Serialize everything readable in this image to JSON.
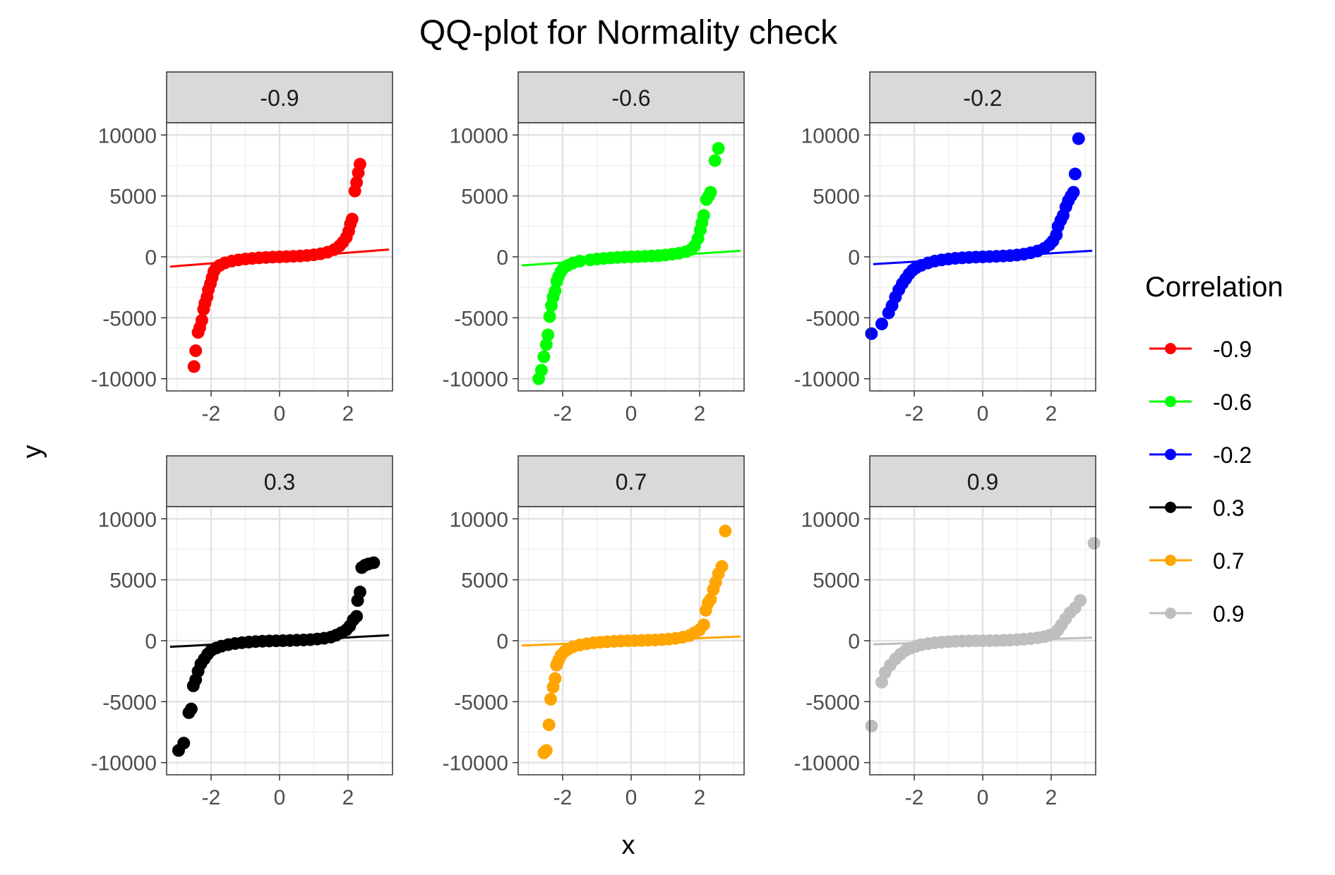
{
  "chart_data": {
    "type": "scatter",
    "title": "QQ-plot for Normality check",
    "xlabel": "x",
    "ylabel": "y",
    "xlim": [
      -3.3,
      3.3
    ],
    "ylim": [
      -11000,
      11000
    ],
    "x_ticks": [
      -2,
      0,
      2
    ],
    "y_ticks": [
      10000,
      5000,
      0,
      -5000,
      -10000
    ],
    "grid": true,
    "legend": {
      "title": "Correlation",
      "placement": "right",
      "entries": [
        "-0.9",
        "-0.6",
        "-0.2",
        "0.3",
        "0.7",
        "0.9"
      ]
    },
    "panels": [
      {
        "label": "-0.9",
        "color": "#ff0000",
        "line": [
          [
            -3.2,
            -800
          ],
          [
            3.2,
            600
          ]
        ],
        "points": [
          [
            -2.5,
            -9000
          ],
          [
            -2.45,
            -7700
          ],
          [
            -2.38,
            -6200
          ],
          [
            -2.33,
            -5800
          ],
          [
            -2.27,
            -5200
          ],
          [
            -2.22,
            -4300
          ],
          [
            -2.18,
            -3800
          ],
          [
            -2.12,
            -3300
          ],
          [
            -2.08,
            -2700
          ],
          [
            -2.02,
            -2200
          ],
          [
            -1.97,
            -1700
          ],
          [
            -1.92,
            -1200
          ],
          [
            -1.85,
            -900
          ],
          [
            -1.75,
            -700
          ],
          [
            -1.6,
            -500
          ],
          [
            -1.4,
            -350
          ],
          [
            -1.2,
            -250
          ],
          [
            -1.0,
            -180
          ],
          [
            -0.8,
            -130
          ],
          [
            -0.6,
            -80
          ],
          [
            -0.4,
            -50
          ],
          [
            -0.2,
            -20
          ],
          [
            0.0,
            0
          ],
          [
            0.2,
            20
          ],
          [
            0.4,
            40
          ],
          [
            0.6,
            70
          ],
          [
            0.8,
            110
          ],
          [
            1.0,
            170
          ],
          [
            1.2,
            250
          ],
          [
            1.4,
            380
          ],
          [
            1.6,
            600
          ],
          [
            1.75,
            900
          ],
          [
            1.85,
            1200
          ],
          [
            1.95,
            1600
          ],
          [
            2.02,
            2100
          ],
          [
            2.07,
            2700
          ],
          [
            2.12,
            3100
          ],
          [
            2.2,
            5400
          ],
          [
            2.25,
            6100
          ],
          [
            2.3,
            6900
          ],
          [
            2.35,
            7600
          ]
        ]
      },
      {
        "label": "-0.6",
        "color": "#00ff00",
        "line": [
          [
            -3.2,
            -700
          ],
          [
            3.2,
            500
          ]
        ],
        "points": [
          [
            -2.7,
            -10000
          ],
          [
            -2.62,
            -9300
          ],
          [
            -2.55,
            -8200
          ],
          [
            -2.48,
            -7200
          ],
          [
            -2.43,
            -6400
          ],
          [
            -2.38,
            -4900
          ],
          [
            -2.33,
            -4000
          ],
          [
            -2.28,
            -3300
          ],
          [
            -2.22,
            -2800
          ],
          [
            -2.17,
            -2000
          ],
          [
            -2.12,
            -1600
          ],
          [
            -2.05,
            -1200
          ],
          [
            -1.97,
            -900
          ],
          [
            -1.85,
            -700
          ],
          [
            -1.7,
            -500
          ],
          [
            -1.5,
            -350
          ],
          [
            -1.2,
            -250
          ],
          [
            -1.0,
            -180
          ],
          [
            -0.8,
            -130
          ],
          [
            -0.6,
            -90
          ],
          [
            -0.4,
            -50
          ],
          [
            -0.2,
            -20
          ],
          [
            0.0,
            0
          ],
          [
            0.2,
            20
          ],
          [
            0.4,
            40
          ],
          [
            0.6,
            70
          ],
          [
            0.8,
            100
          ],
          [
            1.0,
            150
          ],
          [
            1.2,
            220
          ],
          [
            1.4,
            300
          ],
          [
            1.6,
            420
          ],
          [
            1.75,
            600
          ],
          [
            1.85,
            900
          ],
          [
            1.95,
            1500
          ],
          [
            2.02,
            2200
          ],
          [
            2.07,
            2800
          ],
          [
            2.12,
            3400
          ],
          [
            2.2,
            4700
          ],
          [
            2.27,
            5000
          ],
          [
            2.32,
            5300
          ],
          [
            2.45,
            7900
          ],
          [
            2.55,
            8900
          ]
        ]
      },
      {
        "label": "-0.2",
        "color": "#0000ff",
        "line": [
          [
            -3.2,
            -600
          ],
          [
            3.2,
            500
          ]
        ],
        "points": [
          [
            -3.25,
            -6300
          ],
          [
            -2.95,
            -5500
          ],
          [
            -2.75,
            -4600
          ],
          [
            -2.65,
            -4000
          ],
          [
            -2.55,
            -3300
          ],
          [
            -2.45,
            -2700
          ],
          [
            -2.35,
            -2200
          ],
          [
            -2.25,
            -1800
          ],
          [
            -2.15,
            -1400
          ],
          [
            -2.05,
            -1100
          ],
          [
            -1.95,
            -900
          ],
          [
            -1.8,
            -700
          ],
          [
            -1.6,
            -500
          ],
          [
            -1.4,
            -350
          ],
          [
            -1.2,
            -250
          ],
          [
            -1.0,
            -180
          ],
          [
            -0.8,
            -120
          ],
          [
            -0.6,
            -80
          ],
          [
            -0.4,
            -50
          ],
          [
            -0.2,
            -20
          ],
          [
            0.0,
            0
          ],
          [
            0.2,
            20
          ],
          [
            0.4,
            40
          ],
          [
            0.6,
            70
          ],
          [
            0.8,
            100
          ],
          [
            1.0,
            150
          ],
          [
            1.2,
            220
          ],
          [
            1.4,
            330
          ],
          [
            1.6,
            480
          ],
          [
            1.8,
            700
          ],
          [
            1.95,
            1000
          ],
          [
            2.05,
            1300
          ],
          [
            2.15,
            1800
          ],
          [
            2.2,
            2500
          ],
          [
            2.28,
            3000
          ],
          [
            2.35,
            3400
          ],
          [
            2.43,
            4100
          ],
          [
            2.5,
            4600
          ],
          [
            2.58,
            5000
          ],
          [
            2.65,
            5300
          ],
          [
            2.7,
            6800
          ],
          [
            2.8,
            9700
          ]
        ]
      },
      {
        "label": "0.3",
        "color": "#000000",
        "line": [
          [
            -3.2,
            -500
          ],
          [
            3.2,
            450
          ]
        ],
        "points": [
          [
            -2.95,
            -9000
          ],
          [
            -2.8,
            -8400
          ],
          [
            -2.65,
            -5900
          ],
          [
            -2.58,
            -5600
          ],
          [
            -2.52,
            -3700
          ],
          [
            -2.45,
            -3200
          ],
          [
            -2.38,
            -2500
          ],
          [
            -2.3,
            -1900
          ],
          [
            -2.2,
            -1500
          ],
          [
            -2.1,
            -1100
          ],
          [
            -2.0,
            -800
          ],
          [
            -1.85,
            -600
          ],
          [
            -1.7,
            -450
          ],
          [
            -1.5,
            -320
          ],
          [
            -1.3,
            -230
          ],
          [
            -1.1,
            -160
          ],
          [
            -0.9,
            -110
          ],
          [
            -0.7,
            -70
          ],
          [
            -0.5,
            -40
          ],
          [
            -0.3,
            -20
          ],
          [
            -0.1,
            -5
          ],
          [
            0.1,
            5
          ],
          [
            0.3,
            20
          ],
          [
            0.5,
            40
          ],
          [
            0.7,
            60
          ],
          [
            0.9,
            90
          ],
          [
            1.1,
            140
          ],
          [
            1.3,
            200
          ],
          [
            1.5,
            300
          ],
          [
            1.65,
            450
          ],
          [
            1.8,
            650
          ],
          [
            1.95,
            900
          ],
          [
            2.05,
            1200
          ],
          [
            2.15,
            1700
          ],
          [
            2.25,
            2000
          ],
          [
            2.28,
            3300
          ],
          [
            2.35,
            4000
          ],
          [
            2.4,
            6000
          ],
          [
            2.5,
            6200
          ],
          [
            2.6,
            6300
          ],
          [
            2.75,
            6400
          ]
        ]
      },
      {
        "label": "0.7",
        "color": "#ffa500",
        "line": [
          [
            -3.2,
            -400
          ],
          [
            3.2,
            350
          ]
        ],
        "points": [
          [
            -2.55,
            -9200
          ],
          [
            -2.48,
            -9000
          ],
          [
            -2.4,
            -6900
          ],
          [
            -2.35,
            -4800
          ],
          [
            -2.28,
            -3800
          ],
          [
            -2.22,
            -3100
          ],
          [
            -2.18,
            -2000
          ],
          [
            -2.12,
            -1600
          ],
          [
            -2.05,
            -1200
          ],
          [
            -1.95,
            -900
          ],
          [
            -1.85,
            -700
          ],
          [
            -1.7,
            -500
          ],
          [
            -1.5,
            -350
          ],
          [
            -1.3,
            -250
          ],
          [
            -1.1,
            -170
          ],
          [
            -0.9,
            -120
          ],
          [
            -0.7,
            -80
          ],
          [
            -0.5,
            -50
          ],
          [
            -0.3,
            -25
          ],
          [
            -0.1,
            -5
          ],
          [
            0.1,
            5
          ],
          [
            0.3,
            20
          ],
          [
            0.5,
            40
          ],
          [
            0.7,
            60
          ],
          [
            0.9,
            90
          ],
          [
            1.1,
            130
          ],
          [
            1.3,
            190
          ],
          [
            1.5,
            280
          ],
          [
            1.7,
            420
          ],
          [
            1.85,
            650
          ],
          [
            2.0,
            900
          ],
          [
            2.12,
            1300
          ],
          [
            2.18,
            2500
          ],
          [
            2.25,
            3100
          ],
          [
            2.32,
            3400
          ],
          [
            2.4,
            4200
          ],
          [
            2.47,
            4800
          ],
          [
            2.55,
            5500
          ],
          [
            2.65,
            6100
          ],
          [
            2.75,
            9000
          ]
        ]
      },
      {
        "label": "0.9",
        "color": "#bebebe",
        "line": [
          [
            -3.2,
            -300
          ],
          [
            3.2,
            250
          ]
        ],
        "points": [
          [
            -3.25,
            -7000
          ],
          [
            -2.95,
            -3400
          ],
          [
            -2.85,
            -2600
          ],
          [
            -2.7,
            -2000
          ],
          [
            -2.55,
            -1500
          ],
          [
            -2.4,
            -1100
          ],
          [
            -2.25,
            -800
          ],
          [
            -2.1,
            -600
          ],
          [
            -1.95,
            -450
          ],
          [
            -1.8,
            -330
          ],
          [
            -1.6,
            -240
          ],
          [
            -1.4,
            -170
          ],
          [
            -1.2,
            -120
          ],
          [
            -1.0,
            -80
          ],
          [
            -0.8,
            -50
          ],
          [
            -0.6,
            -30
          ],
          [
            -0.4,
            -15
          ],
          [
            -0.2,
            -5
          ],
          [
            0.0,
            0
          ],
          [
            0.2,
            5
          ],
          [
            0.4,
            15
          ],
          [
            0.6,
            30
          ],
          [
            0.8,
            50
          ],
          [
            1.0,
            80
          ],
          [
            1.2,
            120
          ],
          [
            1.4,
            170
          ],
          [
            1.6,
            240
          ],
          [
            1.8,
            330
          ],
          [
            1.95,
            450
          ],
          [
            2.1,
            600
          ],
          [
            2.2,
            900
          ],
          [
            2.3,
            1300
          ],
          [
            2.42,
            1800
          ],
          [
            2.55,
            2300
          ],
          [
            2.7,
            2700
          ],
          [
            2.85,
            3300
          ],
          [
            3.25,
            8000
          ]
        ]
      }
    ]
  }
}
